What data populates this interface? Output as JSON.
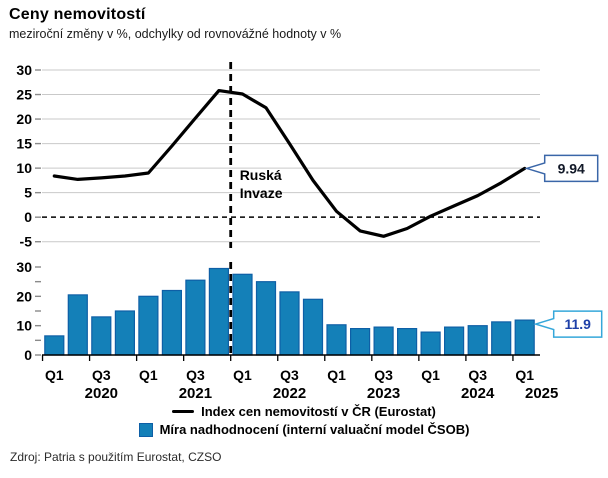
{
  "chart_data": {
    "type": "combo",
    "title": "Ceny nemovitostí",
    "subtitle": "meziroční změny v %, odchylky od rovnovážné hodnoty v %",
    "source": "Zdroj: Patria s použitím Eurostat, CZSO",
    "categories": [
      "Q1 2020",
      "Q2 2020",
      "Q3 2020",
      "Q4 2020",
      "Q1 2021",
      "Q2 2021",
      "Q3 2021",
      "Q4 2021",
      "Q1 2022",
      "Q2 2022",
      "Q3 2022",
      "Q4 2022",
      "Q1 2023",
      "Q2 2023",
      "Q3 2023",
      "Q4 2023",
      "Q1 2024",
      "Q2 2024",
      "Q3 2024",
      "Q4 2024",
      "Q1 2025"
    ],
    "panels": [
      {
        "type": "line",
        "name": "Index cen nemovitostí v ČR (Eurostat)",
        "values": [
          8.4,
          7.7,
          8.0,
          8.4,
          9.0,
          14.5,
          20.2,
          25.8,
          25.1,
          22.3,
          15.0,
          7.5,
          1.2,
          -2.8,
          -3.9,
          -2.3,
          0.2,
          2.3,
          4.4,
          7.0,
          9.94
        ],
        "ylim": [
          -5,
          30
        ],
        "yticks": [
          30,
          25,
          20,
          15,
          10,
          5,
          0,
          -5
        ],
        "zero_line": "dashed",
        "grid": "on",
        "end_label": "9.94"
      },
      {
        "type": "bar",
        "name": "Míra nadhodnocení (interní valuační model ČSOB)",
        "values": [
          6.5,
          20.5,
          13.0,
          15.0,
          20.0,
          22.0,
          25.5,
          29.5,
          27.5,
          25.0,
          21.5,
          19.0,
          10.3,
          9.0,
          9.5,
          9.0,
          7.8,
          9.5,
          10.0,
          11.3,
          11.9
        ],
        "ylim": [
          0,
          30
        ],
        "ytick_labels": [
          30,
          20,
          10,
          0
        ],
        "ytick_minor_step": 5,
        "grid": "off",
        "end_label": "11.9"
      }
    ],
    "x_axis": {
      "quarter_labels": [
        {
          "label": "Q1",
          "i": 0
        },
        {
          "label": "Q3",
          "i": 2
        },
        {
          "label": "Q1",
          "i": 4
        },
        {
          "label": "Q3",
          "i": 6
        },
        {
          "label": "Q1",
          "i": 8
        },
        {
          "label": "Q3",
          "i": 10
        },
        {
          "label": "Q1",
          "i": 12
        },
        {
          "label": "Q3",
          "i": 14
        },
        {
          "label": "Q1",
          "i": 16
        },
        {
          "label": "Q3",
          "i": 18
        },
        {
          "label": "Q1",
          "i": 20
        }
      ],
      "year_labels": [
        {
          "label": "2020",
          "i": 2,
          "dx": 0
        },
        {
          "label": "2021",
          "i": 6,
          "dx": 0
        },
        {
          "label": "2022",
          "i": 10,
          "dx": 0
        },
        {
          "label": "2023",
          "i": 14,
          "dx": 0
        },
        {
          "label": "2024",
          "i": 18,
          "dx": 0
        },
        {
          "label": "2025",
          "i": 20,
          "dx": 17
        }
      ]
    },
    "annotation": {
      "lines": [
        "Ruská",
        "Invaze"
      ],
      "at_category": "Q1 2022"
    },
    "colors": {
      "line": "#000000",
      "bar_fill": "#1480B8",
      "bar_stroke": "#0E5FA6",
      "grid": "#C9C9C9",
      "axis": "#000000",
      "callout_line_border": "#3A66A8",
      "callout_line_text": "#111827",
      "callout_bar_border": "#35A7DA",
      "callout_bar_text": "#1D3FA8"
    }
  },
  "legend_note": "legend labels bound to panel names"
}
